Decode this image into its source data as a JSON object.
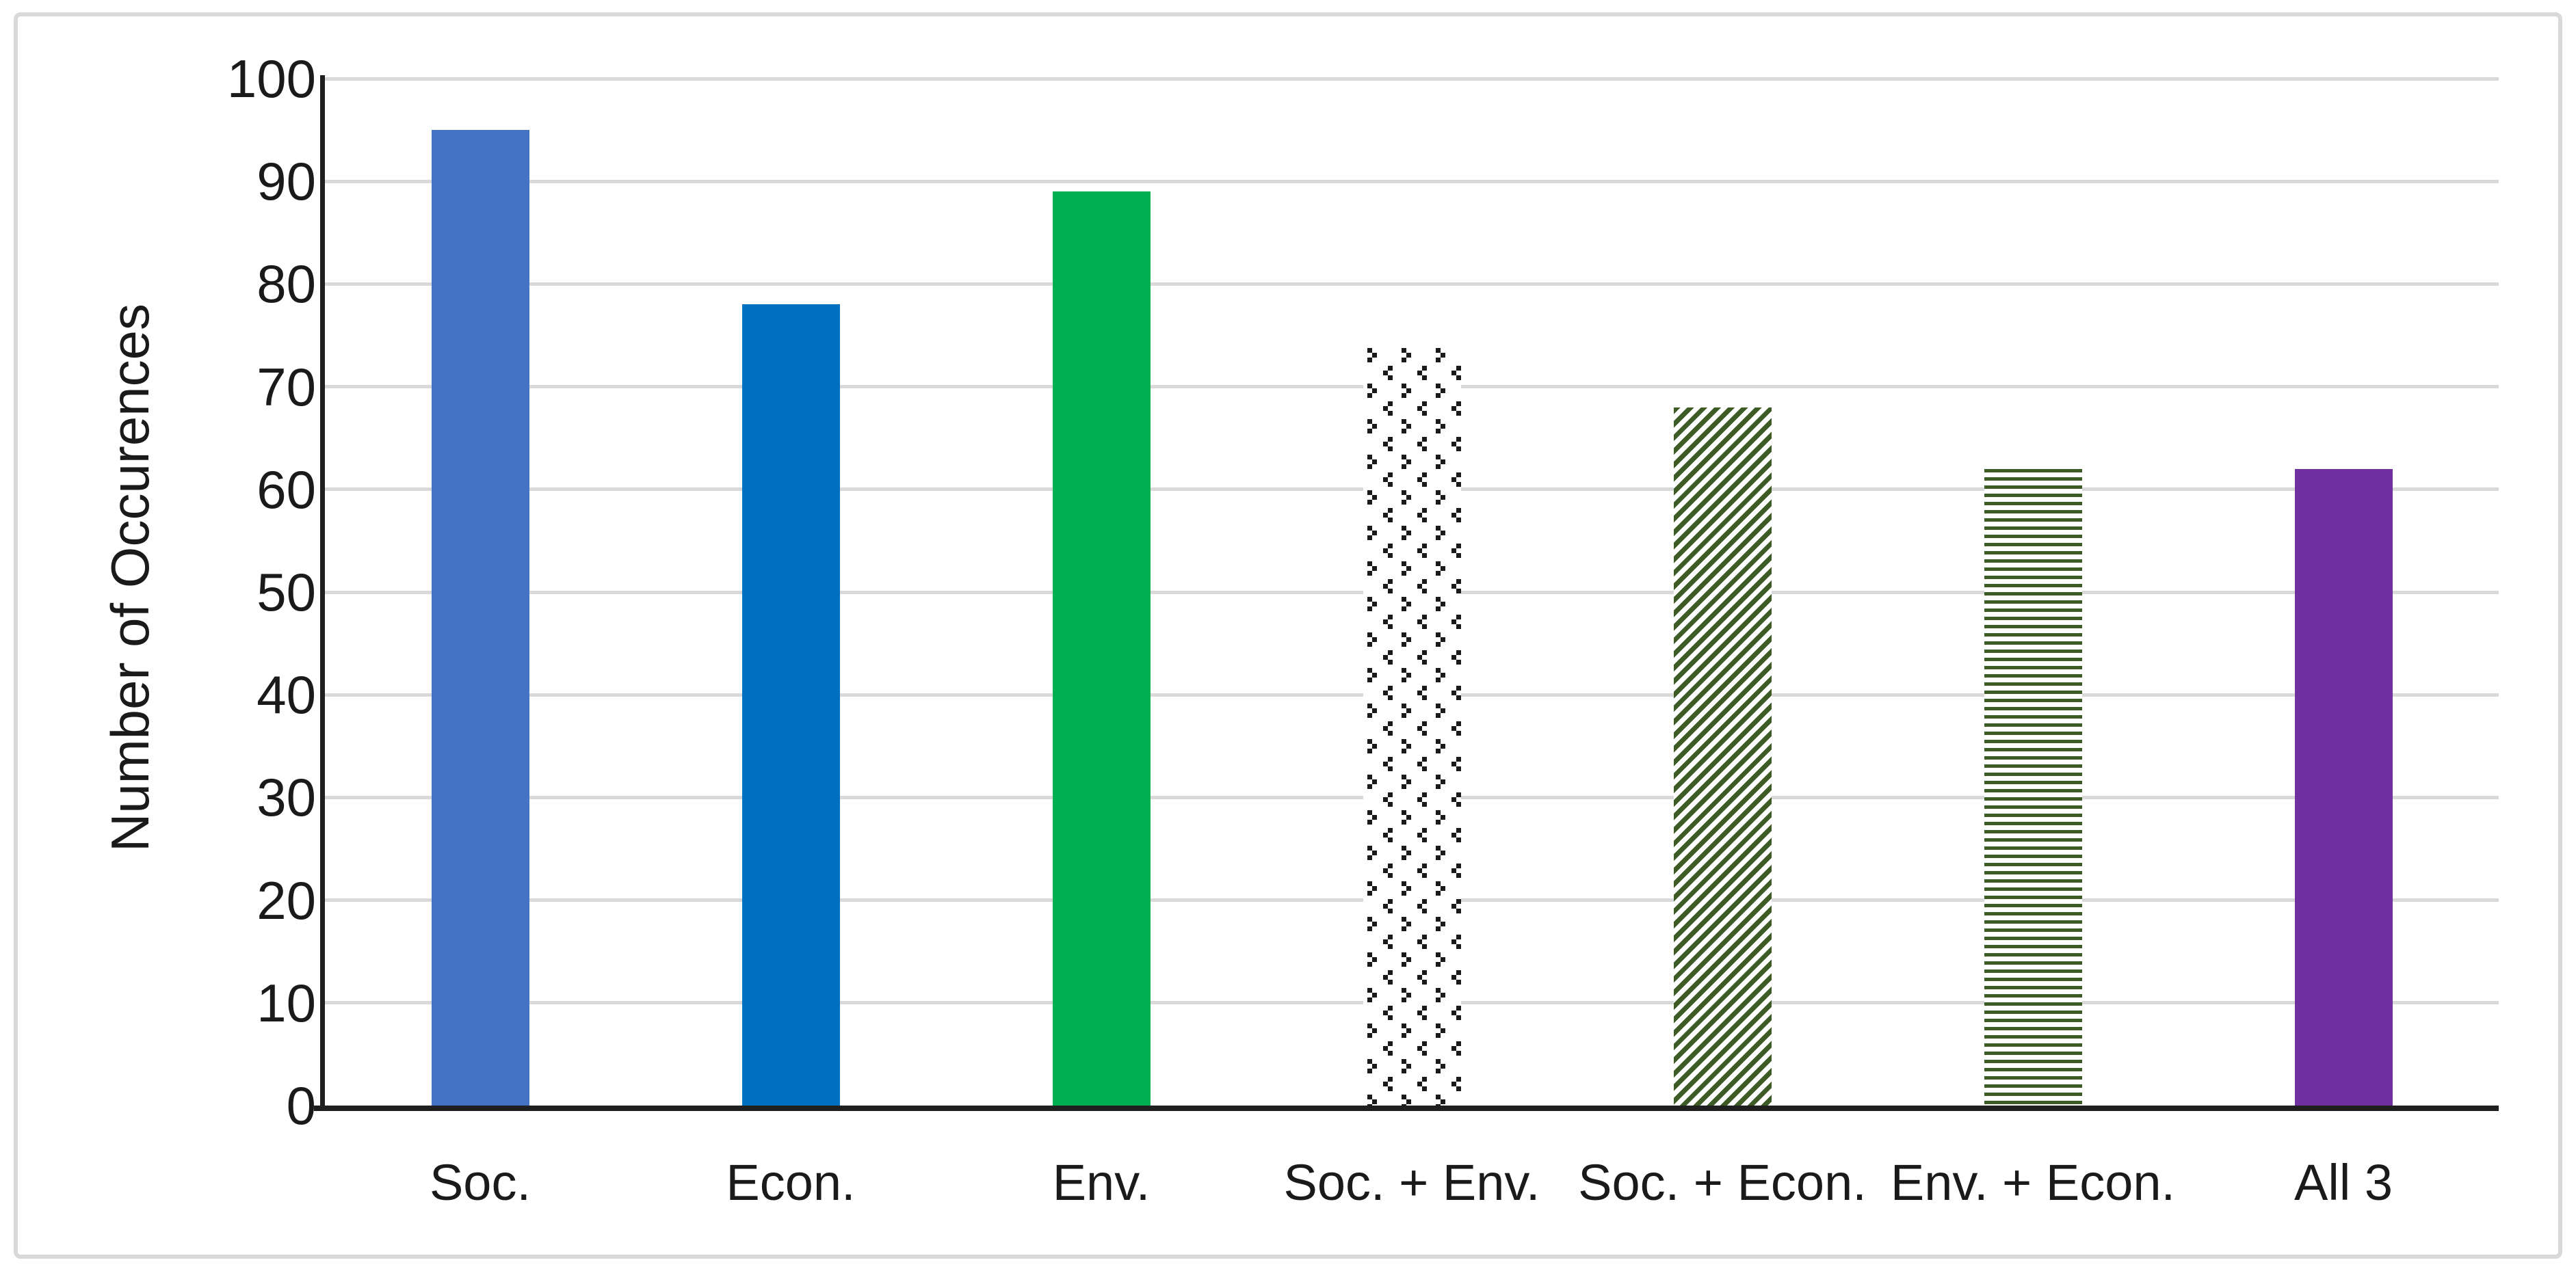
{
  "chart_data": {
    "type": "bar",
    "title": "",
    "xlabel": "",
    "ylabel": "Number of Occurences",
    "categories": [
      "Soc.",
      "Econ.",
      "Env.",
      "Soc. + Env.",
      "Soc. + Econ.",
      "Env. + Econ.",
      "All 3"
    ],
    "values": [
      95,
      78,
      89,
      74,
      68,
      62,
      62
    ],
    "ylim": [
      0,
      100
    ],
    "yticks": [
      0,
      10,
      20,
      30,
      40,
      50,
      60,
      70,
      80,
      90,
      100
    ],
    "grid": "horizontal gridlines on",
    "legend": "none",
    "bar_styles": [
      {
        "pattern": "solid",
        "color": "#4472C4",
        "background": "#4472C4"
      },
      {
        "pattern": "solid",
        "color": "#0070C0",
        "background": "#0070C0"
      },
      {
        "pattern": "solid",
        "color": "#00B050",
        "background": "#00B050"
      },
      {
        "pattern": "divot",
        "color": "#1A1A1A",
        "background": "#FFFFFF"
      },
      {
        "pattern": "diagonal-stripe-up",
        "color": "#3D5B25",
        "background": "#FFFFFF"
      },
      {
        "pattern": "horizontal-stripe",
        "color": "#3D5B25",
        "background": "#FFFFFF"
      },
      {
        "pattern": "solid",
        "color": "#7030A0",
        "background": "#7030A0"
      }
    ]
  },
  "styles": {
    "axis_color": "#1F1F1F",
    "gridline_color": "#D9D9D9",
    "frame_border_color": "#D9D9D9",
    "background": "#FFFFFF",
    "text_color": "#1A1A1A"
  }
}
